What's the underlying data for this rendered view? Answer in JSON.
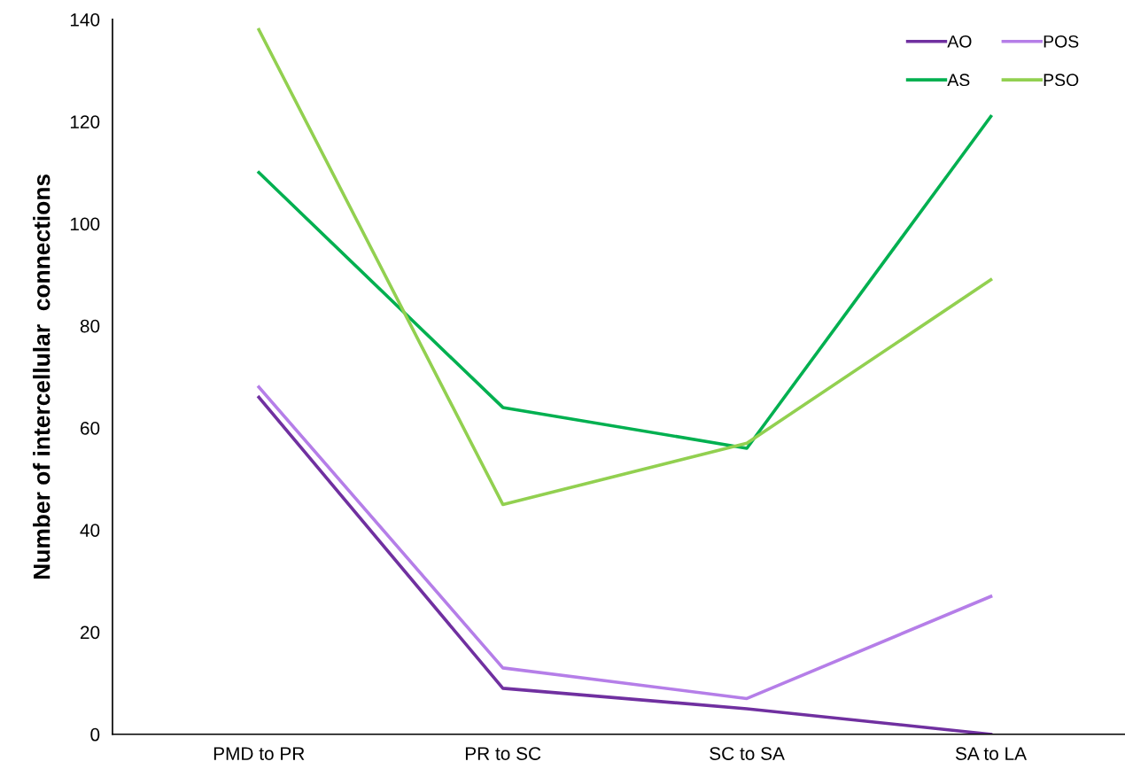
{
  "chart_data": {
    "type": "line",
    "ylabel": "Number of intercellular  connections",
    "categories": [
      "PMD to PR",
      "PR to SC",
      "SC to SA",
      "SA to LA"
    ],
    "series": [
      {
        "name": "AO",
        "color": "#7030a0",
        "values": [
          66,
          9,
          5,
          0
        ]
      },
      {
        "name": "AS",
        "color": "#00b050",
        "values": [
          110,
          64,
          56,
          121
        ]
      },
      {
        "name": "POS",
        "color": "#b57ee8",
        "values": [
          68,
          13,
          7,
          27
        ]
      },
      {
        "name": "PSO",
        "color": "#92d050",
        "values": [
          138,
          45,
          57,
          89
        ]
      }
    ],
    "ylim": [
      0,
      140
    ],
    "yticks": [
      0,
      20,
      40,
      60,
      80,
      100,
      120,
      140
    ],
    "grid": false,
    "legend": "top right",
    "marker": "none",
    "line_style": "solid"
  }
}
